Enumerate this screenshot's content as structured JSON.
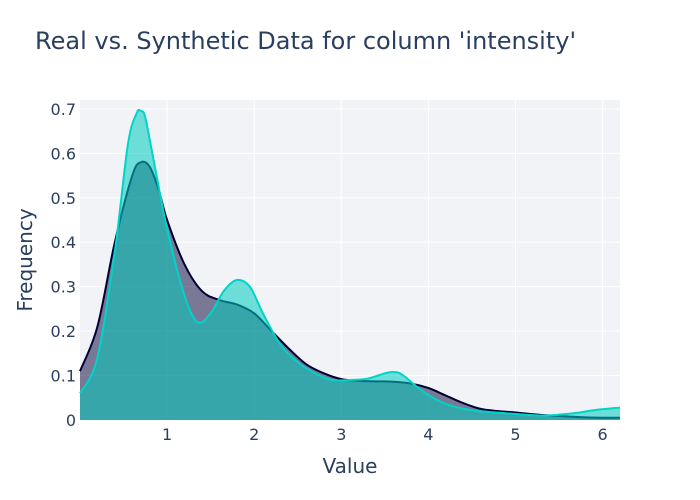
{
  "chart_data": {
    "type": "area",
    "title": "Real vs. Synthetic Data for column 'intensity'",
    "xlabel": "Value",
    "ylabel": "Frequency",
    "xlim": [
      0,
      6.2
    ],
    "ylim": [
      0,
      0.72
    ],
    "x_ticks": [
      1,
      2,
      3,
      4,
      5,
      6
    ],
    "y_ticks": [
      0,
      0.1,
      0.2,
      0.3,
      0.4,
      0.5,
      0.6,
      0.7
    ],
    "grid": true,
    "legend": "none",
    "series": [
      {
        "color": "#000036",
        "fill": "rgba(0,0,54,0.5)",
        "x": [
          0,
          0.2,
          0.4,
          0.6,
          0.7,
          0.8,
          0.9,
          1.0,
          1.2,
          1.4,
          1.6,
          1.8,
          2.0,
          2.2,
          2.4,
          2.6,
          2.8,
          3.0,
          3.2,
          3.4,
          3.6,
          3.8,
          4.0,
          4.2,
          4.4,
          4.6,
          4.8,
          5.0,
          5.2,
          5.4,
          5.6,
          5.8,
          6.0,
          6.2
        ],
        "y": [
          0.11,
          0.21,
          0.4,
          0.55,
          0.58,
          0.57,
          0.52,
          0.45,
          0.35,
          0.29,
          0.27,
          0.26,
          0.24,
          0.2,
          0.16,
          0.125,
          0.105,
          0.092,
          0.088,
          0.087,
          0.086,
          0.082,
          0.072,
          0.055,
          0.038,
          0.025,
          0.02,
          0.017,
          0.013,
          0.01,
          0.008,
          0.006,
          0.005,
          0.005
        ]
      },
      {
        "color": "#00d4c8",
        "fill": "rgba(0,204,190,0.55)",
        "x": [
          0,
          0.2,
          0.4,
          0.55,
          0.65,
          0.7,
          0.75,
          0.85,
          1.0,
          1.2,
          1.35,
          1.5,
          1.65,
          1.8,
          1.95,
          2.1,
          2.3,
          2.5,
          2.7,
          2.9,
          3.1,
          3.3,
          3.5,
          3.6,
          3.7,
          3.9,
          4.1,
          4.3,
          4.5,
          4.7,
          4.9,
          5.1,
          5.3,
          5.5,
          5.7,
          5.9,
          6.2
        ],
        "y": [
          0.06,
          0.14,
          0.38,
          0.62,
          0.69,
          0.695,
          0.68,
          0.58,
          0.43,
          0.28,
          0.22,
          0.24,
          0.29,
          0.315,
          0.3,
          0.24,
          0.17,
          0.13,
          0.105,
          0.09,
          0.09,
          0.093,
          0.105,
          0.108,
          0.102,
          0.07,
          0.045,
          0.03,
          0.022,
          0.018,
          0.015,
          0.012,
          0.01,
          0.012,
          0.016,
          0.022,
          0.028
        ]
      }
    ]
  }
}
